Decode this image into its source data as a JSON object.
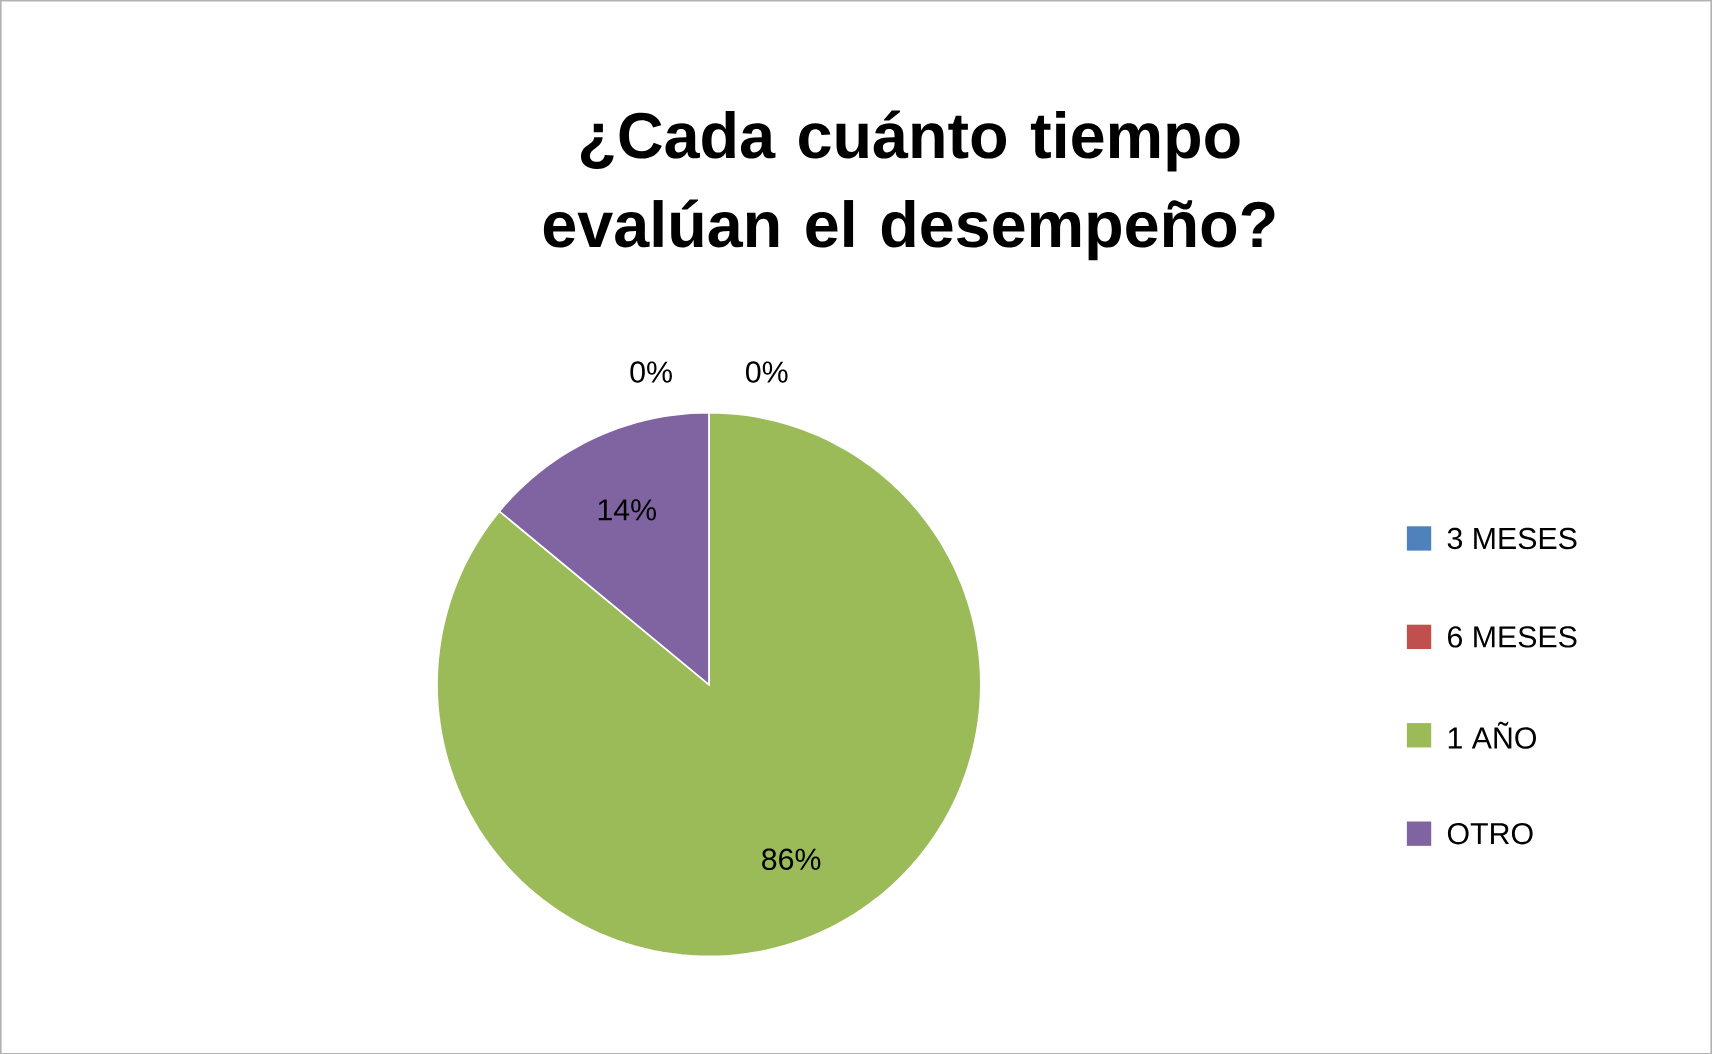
{
  "chart_data": {
    "type": "pie",
    "title": "¿Cada cuánto tiempo evalúan el desempeño?",
    "categories": [
      "3 MESES",
      "6 MESES",
      "1 AÑO",
      "OTRO"
    ],
    "values": [
      0,
      0,
      86,
      14
    ],
    "colors": [
      "#4f81bd",
      "#c0504d",
      "#9bbb59",
      "#8064a2"
    ],
    "value_labels": [
      "0%",
      "0%",
      "86%",
      "14%"
    ],
    "legend": "right"
  }
}
